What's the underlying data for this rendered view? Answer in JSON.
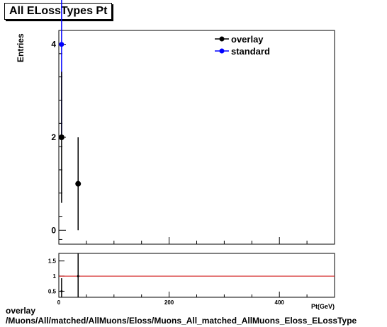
{
  "title": "All ELossTypes Pt",
  "caption": {
    "line1": "overlay",
    "line2": "/Muons/All/matched/AllMuons/Eloss/Muons_All_matched_AllMuons_Eloss_ELossType"
  },
  "colors": {
    "overlay": "#000000",
    "standard": "#0000ff",
    "ratio_line": "#cc0000"
  },
  "chart_data": [
    {
      "type": "scatter",
      "title": "All ELossTypes Pt",
      "xlabel": "Pt(GeV)",
      "ylabel": "Entries",
      "xlim": [
        0,
        500
      ],
      "ylim": [
        -0.3,
        4.3
      ],
      "y_ticks": [
        0,
        2,
        4
      ],
      "x_ticks": [],
      "legend_position": "top-right",
      "series": [
        {
          "name": "overlay",
          "points": [
            {
              "x": 5,
              "y": 2,
              "err": 1.41
            },
            {
              "x": 35,
              "y": 1,
              "err": 1.0
            }
          ]
        },
        {
          "name": "standard",
          "points": [
            {
              "x": 5,
              "y": 4,
              "err": 2.0
            }
          ]
        }
      ]
    },
    {
      "type": "scatter",
      "xlim": [
        0,
        500
      ],
      "ylim": [
        0.3,
        1.75
      ],
      "y_ticks": [
        0.5,
        1,
        1.5
      ],
      "x_ticks": [
        0,
        200,
        400
      ],
      "reference_line": 1,
      "series": [
        {
          "name": "",
          "points": [
            {
              "x": 5,
              "y": 0.5,
              "err": 0.43
            },
            {
              "x": 35,
              "y": 1.0,
              "err": 1.0
            }
          ]
        }
      ]
    }
  ]
}
